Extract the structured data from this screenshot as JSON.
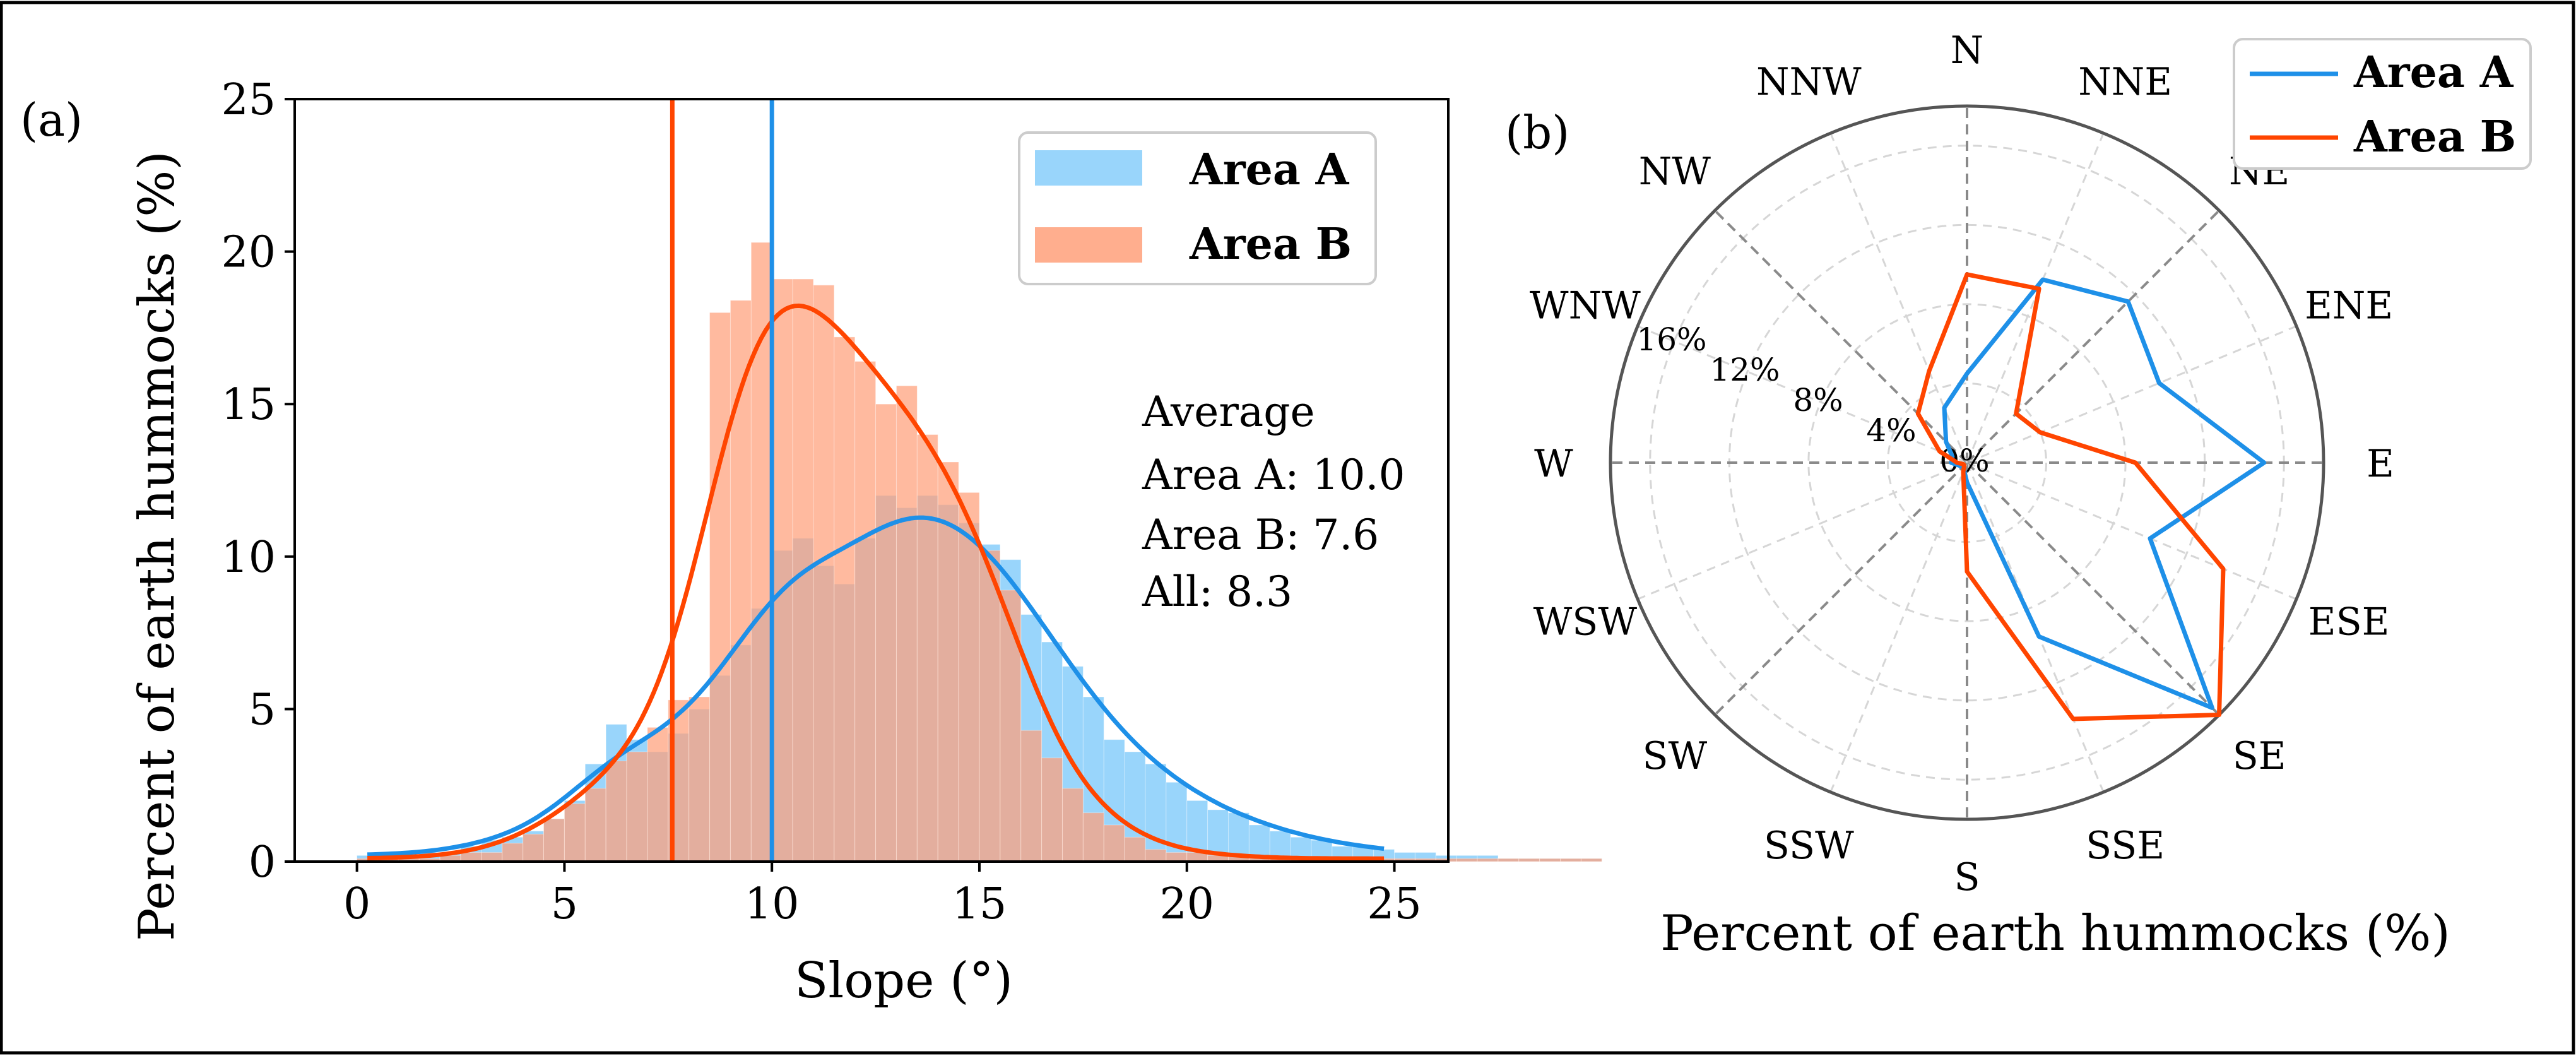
{
  "colors": {
    "area_a": "#1e90e8",
    "area_a_fill": "#87cefa",
    "area_b": "#ff4500",
    "area_b_fill": "#ffa07a",
    "overlap": "#c88c90"
  },
  "chart_data": [
    {
      "panel": "(a)",
      "type": "bar",
      "subtype": "histogram_with_density",
      "xlabel": "Slope (°)",
      "ylabel": "Percent of earth hummocks (%)",
      "xlim": [
        -1.5,
        26.3
      ],
      "ylim": [
        0,
        25
      ],
      "xticks": [
        "0",
        "5",
        "10",
        "15",
        "20",
        "25"
      ],
      "yticks": [
        "0",
        "5",
        "10",
        "15",
        "20",
        "25"
      ],
      "bin_width": 0.5,
      "bin_start": 0,
      "legend": {
        "placement": "top-right",
        "entries": [
          "Area A",
          "Area B"
        ]
      },
      "series": [
        {
          "name": "Area A",
          "values": [
            0.2,
            0.2,
            0.2,
            0.3,
            0.3,
            0.5,
            0.7,
            0.8,
            1.0,
            1.4,
            2.0,
            3.2,
            4.5,
            4.0,
            3.6,
            4.2,
            5.0,
            6.1,
            7.1,
            8.3,
            10.2,
            10.6,
            9.7,
            9.1,
            10.6,
            12.0,
            11.6,
            12.0,
            11.7,
            11.1,
            10.4,
            9.9,
            8.1,
            7.2,
            6.4,
            5.4,
            4.0,
            3.6,
            3.2,
            2.6,
            2.0,
            1.7,
            1.6,
            1.2,
            1.0,
            0.8,
            0.7,
            0.5,
            0.5,
            0.4,
            0.3,
            0.3,
            0.2,
            0.2,
            0.2,
            0.1,
            0.1,
            0.1,
            0.1,
            0.1
          ],
          "mean": 10.0
        },
        {
          "name": "Area B",
          "values": [
            0.1,
            0.1,
            0.1,
            0.1,
            0.2,
            0.3,
            0.3,
            0.6,
            0.9,
            1.4,
            1.9,
            2.4,
            3.3,
            3.6,
            4.4,
            5.3,
            5.4,
            18.0,
            18.4,
            20.3,
            19.1,
            19.1,
            18.9,
            17.2,
            16.4,
            15.0,
            15.6,
            14.0,
            13.1,
            12.1,
            10.2,
            8.9,
            4.3,
            3.4,
            2.4,
            1.6,
            1.2,
            0.8,
            0.4,
            0.3,
            0.3,
            0.2,
            0.2,
            0.1,
            0.1,
            0.1,
            0.1,
            0.1,
            0.1,
            0.1,
            0.1,
            0.1,
            0.1,
            0.1,
            0.1,
            0.1,
            0.1,
            0.1,
            0.1,
            0.1
          ],
          "mean": 7.6
        }
      ],
      "annotation": {
        "title": "Average",
        "lines": [
          "Area A: 10.0",
          "Area B: 7.6",
          "All: 8.3"
        ]
      }
    },
    {
      "panel": "(b)",
      "type": "line",
      "subtype": "polar_radar",
      "xlabel": "Percent of earth hummocks (%)",
      "directions": [
        "N",
        "NNE",
        "NE",
        "ENE",
        "E",
        "ESE",
        "SE",
        "SSE",
        "S",
        "SSW",
        "SW",
        "WSW",
        "W",
        "WNW",
        "NW",
        "NNW"
      ],
      "radial_ticks": [
        "0%",
        "4%",
        "8%",
        "12%",
        "16%"
      ],
      "rmax": 18,
      "legend": {
        "placement": "top-right",
        "entries": [
          "Area A",
          "Area B"
        ]
      },
      "series": [
        {
          "name": "Area A",
          "values": [
            4.5,
            10.0,
            11.5,
            10.5,
            15.0,
            10.0,
            17.5,
            9.5,
            1.0,
            0.4,
            0.3,
            0.4,
            0.8,
            0.8,
            1.5,
            3.0
          ]
        },
        {
          "name": "Area B",
          "values": [
            9.5,
            9.5,
            3.5,
            4.0,
            8.5,
            14.0,
            18.0,
            14.0,
            5.5,
            0.5,
            0.2,
            0.2,
            0.5,
            1.5,
            3.5,
            5.0
          ]
        }
      ]
    }
  ]
}
